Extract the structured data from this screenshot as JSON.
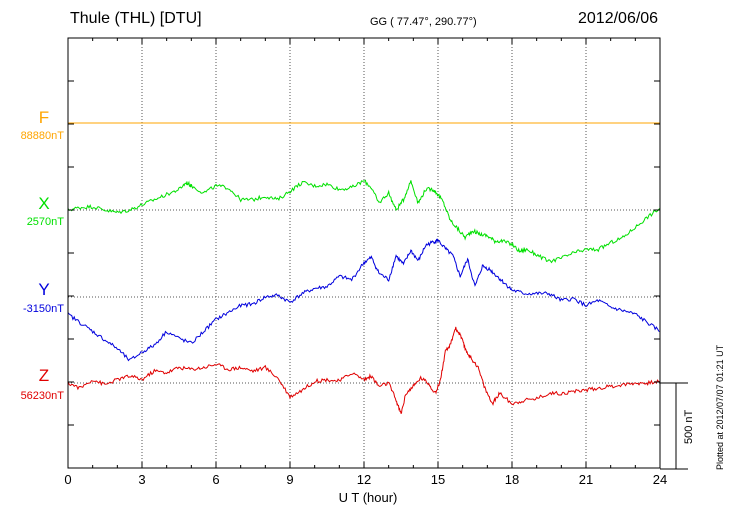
{
  "header": {
    "station": "Thule (THL)  [DTU]",
    "coordinates": "GG ( 77.47°, 290.77°)",
    "date": "2012/06/06"
  },
  "footer_note": "Plotted at 2012/07/07 01:21  UT",
  "chart_data": {
    "type": "line",
    "xlabel": "U T (hour)",
    "xlim": [
      0,
      24
    ],
    "x_ticks": [
      0,
      3,
      6,
      9,
      12,
      15,
      18,
      21,
      24
    ],
    "x_tick_labels": [
      "0",
      "3",
      "6",
      "9",
      "12",
      "15",
      "18",
      "21",
      "24"
    ],
    "scale_bar_label": "500 nT",
    "scale_bar_nT": 500,
    "grid": true,
    "series": [
      {
        "name": "F",
        "baseline_label": "88880nT",
        "color": "#ffa500",
        "style": "flat",
        "x": [
          0,
          24
        ],
        "y": [
          0,
          0
        ]
      },
      {
        "name": "X",
        "baseline_label": "2570nT",
        "color": "#00e000",
        "x": [
          0,
          0.5,
          1.0,
          1.5,
          2.0,
          2.5,
          3.0,
          3.5,
          4.0,
          4.5,
          4.8,
          5.0,
          5.5,
          6.0,
          6.5,
          7.0,
          7.5,
          8.0,
          8.5,
          9.0,
          9.5,
          10.0,
          10.5,
          11.0,
          11.5,
          12.0,
          12.3,
          12.6,
          13.0,
          13.3,
          13.6,
          13.9,
          14.2,
          14.5,
          14.8,
          15.0,
          15.2,
          15.5,
          15.8,
          16.1,
          16.4,
          16.7,
          17.0,
          17.3,
          17.6,
          18.0,
          18.3,
          18.6,
          19.0,
          19.5,
          20.0,
          20.5,
          21.0,
          21.5,
          22.0,
          22.5,
          23.0,
          23.5,
          24.0
        ],
        "y": [
          0,
          15,
          20,
          0,
          -15,
          0,
          30,
          60,
          90,
          120,
          160,
          140,
          100,
          140,
          130,
          60,
          60,
          80,
          60,
          110,
          160,
          140,
          150,
          120,
          130,
          170,
          130,
          40,
          100,
          0,
          60,
          170,
          40,
          120,
          120,
          90,
          50,
          -60,
          -110,
          -160,
          -120,
          -140,
          -150,
          -180,
          -180,
          -200,
          -240,
          -230,
          -260,
          -300,
          -280,
          -250,
          -230,
          -230,
          -190,
          -160,
          -100,
          -40,
          10
        ]
      },
      {
        "name": "Y",
        "baseline_label": "-3150nT",
        "color": "#0000dd",
        "x": [
          0,
          0.5,
          1.0,
          1.5,
          2.0,
          2.5,
          3.0,
          3.5,
          4.0,
          4.5,
          5.0,
          5.5,
          6.0,
          6.5,
          7.0,
          7.5,
          8.0,
          8.5,
          9.0,
          9.5,
          10.0,
          10.5,
          11.0,
          11.5,
          12.0,
          12.3,
          12.6,
          13.0,
          13.3,
          13.6,
          13.9,
          14.2,
          14.5,
          14.8,
          15.0,
          15.3,
          15.6,
          15.9,
          16.2,
          16.5,
          16.8,
          17.1,
          17.4,
          17.7,
          18.0,
          18.5,
          19.0,
          19.5,
          20.0,
          20.5,
          21.0,
          21.5,
          22.0,
          22.5,
          23.0,
          23.5,
          24.0
        ],
        "y": [
          -100,
          -150,
          -200,
          -250,
          -300,
          -370,
          -320,
          -280,
          -200,
          -240,
          -270,
          -200,
          -130,
          -90,
          -50,
          -40,
          0,
          10,
          -30,
          20,
          50,
          60,
          120,
          100,
          200,
          230,
          140,
          100,
          240,
          190,
          270,
          210,
          300,
          320,
          330,
          280,
          240,
          120,
          220,
          60,
          180,
          160,
          120,
          80,
          40,
          20,
          20,
          20,
          -20,
          -10,
          -50,
          -20,
          -60,
          -80,
          -100,
          -150,
          -200
        ]
      },
      {
        "name": "Z",
        "baseline_label": "56230nT",
        "color": "#e00000",
        "x": [
          0,
          0.5,
          1.0,
          1.5,
          2.0,
          2.5,
          3.0,
          3.5,
          4.0,
          4.5,
          5.0,
          5.5,
          6.0,
          6.5,
          7.0,
          7.5,
          8.0,
          8.5,
          9.0,
          9.5,
          10.0,
          10.5,
          11.0,
          11.5,
          12.0,
          12.3,
          12.6,
          13.0,
          13.3,
          13.5,
          13.7,
          14.0,
          14.3,
          14.6,
          14.9,
          15.1,
          15.3,
          15.5,
          15.7,
          15.9,
          16.1,
          16.3,
          16.6,
          16.9,
          17.2,
          17.5,
          18.0,
          18.5,
          19.0,
          19.5,
          20.0,
          20.5,
          21.0,
          21.5,
          22.0,
          22.5,
          23.0,
          23.5,
          24.0
        ],
        "y": [
          0,
          -30,
          20,
          -10,
          20,
          40,
          20,
          70,
          60,
          90,
          80,
          90,
          110,
          80,
          90,
          70,
          90,
          30,
          -80,
          -40,
          10,
          20,
          10,
          60,
          20,
          40,
          -20,
          0,
          -100,
          -180,
          -60,
          -20,
          30,
          0,
          -60,
          20,
          180,
          220,
          320,
          280,
          200,
          150,
          100,
          -30,
          -120,
          -60,
          -120,
          -100,
          -90,
          -60,
          -60,
          -50,
          -40,
          -30,
          -20,
          -10,
          0,
          0,
          10
        ]
      }
    ]
  }
}
